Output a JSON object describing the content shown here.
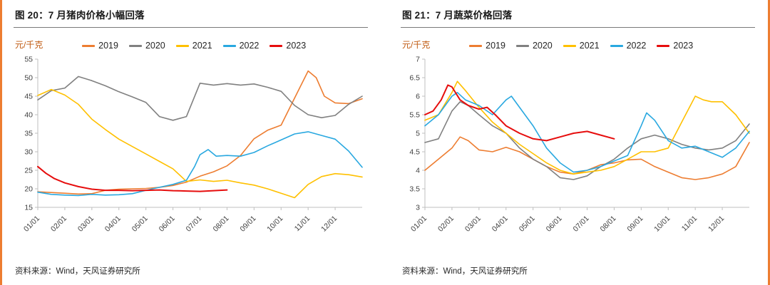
{
  "page": {
    "background": "#ffffff",
    "accent_border_color": "#ED7D31",
    "unit_label_color": "#C05A11",
    "title_color": "#1A1A1A",
    "axis_line_color": "#BFBFBF",
    "tick_label_color": "#404040"
  },
  "chart_data": [
    {
      "type": "line",
      "title": "图 20：7 月猪肉价格小幅回落",
      "ylabel": "元/千克",
      "source": "资料来源：Wind，天风证券研究所",
      "x_tick_labels": [
        "01/01",
        "02/01",
        "03/01",
        "04/01",
        "05/01",
        "06/01",
        "07/01",
        "08/01",
        "09/01",
        "10/01",
        "11/01",
        "12/01"
      ],
      "x_range": [
        0,
        12
      ],
      "ylim": [
        15,
        55
      ],
      "y_tick_step": 5,
      "grid": false,
      "legend_position": "top",
      "series": [
        {
          "name": "2019",
          "color": "#ED7D31",
          "x": [
            0,
            0.5,
            1,
            1.5,
            2,
            2.5,
            3,
            3.5,
            4,
            4.5,
            5,
            5.5,
            6,
            6.5,
            7,
            7.5,
            8,
            8.5,
            9,
            9.5,
            10,
            10.3,
            10.6,
            11,
            11.5,
            12
          ],
          "values": [
            19.2,
            19.0,
            18.8,
            18.6,
            18.7,
            19.6,
            19.9,
            20.0,
            20.1,
            20.4,
            20.9,
            21.8,
            23.4,
            24.6,
            26.2,
            29.0,
            33.5,
            35.8,
            37.2,
            44.5,
            51.8,
            50.0,
            45.0,
            43.2,
            43.0,
            44.3
          ]
        },
        {
          "name": "2020",
          "color": "#808080",
          "x": [
            0,
            0.5,
            1,
            1.5,
            2,
            2.5,
            3,
            3.5,
            4,
            4.5,
            5,
            5.5,
            6,
            6.5,
            7,
            7.5,
            8,
            8.5,
            9,
            9.5,
            10,
            10.5,
            11,
            11.5,
            12
          ],
          "values": [
            44.0,
            46.5,
            47.2,
            50.3,
            49.2,
            47.8,
            46.2,
            44.8,
            43.3,
            39.5,
            38.5,
            39.5,
            48.5,
            48.0,
            48.4,
            48.0,
            48.3,
            47.4,
            46.3,
            42.5,
            40.0,
            39.2,
            39.8,
            42.8,
            45.0
          ]
        },
        {
          "name": "2021",
          "color": "#FFC000",
          "x": [
            0,
            0.5,
            1,
            1.5,
            2,
            2.5,
            3,
            3.5,
            4,
            4.5,
            5,
            5.5,
            6,
            6.5,
            7,
            7.5,
            8,
            8.5,
            9,
            9.5,
            10,
            10.5,
            11,
            11.5,
            12
          ],
          "values": [
            45.2,
            46.8,
            45.3,
            42.8,
            38.8,
            36.0,
            33.4,
            31.4,
            29.4,
            27.4,
            25.4,
            22.0,
            22.4,
            22.0,
            22.3,
            21.6,
            21.0,
            20.0,
            18.8,
            17.6,
            21.2,
            23.3,
            24.1,
            23.8,
            23.2
          ]
        },
        {
          "name": "2022",
          "color": "#29A8E0",
          "x": [
            0,
            0.5,
            1,
            1.5,
            2,
            2.5,
            3,
            3.5,
            4,
            4.5,
            5,
            5.5,
            5.8,
            6,
            6.3,
            6.6,
            7,
            7.5,
            8,
            8.5,
            9,
            9.5,
            10,
            10.5,
            11,
            11.5,
            12
          ],
          "values": [
            19.1,
            18.5,
            18.3,
            18.2,
            18.5,
            18.3,
            18.4,
            18.7,
            19.6,
            20.4,
            21.2,
            22.3,
            26.0,
            29.2,
            30.6,
            28.8,
            29.0,
            28.8,
            29.8,
            31.6,
            33.2,
            34.8,
            35.4,
            34.4,
            33.4,
            30.2,
            25.8
          ]
        },
        {
          "name": "2023",
          "color": "#E60D0D",
          "width": 2,
          "x": [
            0,
            0.3,
            0.6,
            1,
            1.5,
            2,
            2.5,
            3,
            3.5,
            4,
            4.5,
            5,
            5.5,
            6,
            6.5,
            7
          ],
          "values": [
            26.0,
            24.2,
            22.8,
            21.6,
            20.6,
            19.9,
            19.6,
            19.6,
            19.5,
            19.6,
            19.7,
            19.5,
            19.4,
            19.3,
            19.5,
            19.7
          ]
        }
      ]
    },
    {
      "type": "line",
      "title": "图 21：7 月蔬菜价格回落",
      "ylabel": "元/千克",
      "source": "资料来源：Wind，天风证券研究所",
      "x_tick_labels": [
        "01/01",
        "02/01",
        "03/01",
        "04/01",
        "05/01",
        "06/01",
        "07/01",
        "08/01",
        "09/01",
        "10/01",
        "11/01",
        "12/01"
      ],
      "x_range": [
        0,
        12
      ],
      "ylim": [
        3,
        7
      ],
      "y_tick_step": 0.5,
      "grid": false,
      "legend_position": "top",
      "series": [
        {
          "name": "2019",
          "color": "#ED7D31",
          "x": [
            0,
            0.5,
            1,
            1.3,
            1.6,
            2,
            2.5,
            3,
            3.5,
            4,
            4.5,
            5,
            5.5,
            6,
            6.5,
            7,
            7.5,
            8,
            8.5,
            9,
            9.5,
            10,
            10.5,
            11,
            11.5,
            12
          ],
          "values": [
            4.0,
            4.3,
            4.6,
            4.9,
            4.8,
            4.55,
            4.5,
            4.62,
            4.5,
            4.3,
            4.1,
            3.95,
            3.9,
            4.0,
            4.15,
            4.2,
            4.28,
            4.3,
            4.1,
            3.95,
            3.8,
            3.75,
            3.8,
            3.9,
            4.1,
            4.75
          ]
        },
        {
          "name": "2020",
          "color": "#808080",
          "x": [
            0,
            0.5,
            1,
            1.3,
            1.6,
            2,
            2.5,
            3,
            3.5,
            4,
            4.5,
            5,
            5.5,
            6,
            6.5,
            7,
            7.5,
            8,
            8.5,
            9,
            9.5,
            10,
            10.5,
            11,
            11.5,
            12
          ],
          "values": [
            4.75,
            4.85,
            5.6,
            5.85,
            5.75,
            5.5,
            5.2,
            5.0,
            4.6,
            4.3,
            4.1,
            3.8,
            3.75,
            3.85,
            4.1,
            4.3,
            4.6,
            4.85,
            4.95,
            4.85,
            4.7,
            4.6,
            4.55,
            4.6,
            4.8,
            5.25
          ]
        },
        {
          "name": "2021",
          "color": "#FFC000",
          "x": [
            0,
            0.5,
            1,
            1.2,
            1.5,
            2,
            2.5,
            3,
            3.5,
            4,
            4.5,
            5,
            5.5,
            6,
            6.5,
            7,
            7.5,
            8,
            8.5,
            9,
            9.5,
            10,
            10.3,
            10.6,
            11,
            11.5,
            12
          ],
          "values": [
            5.35,
            5.5,
            6.1,
            6.4,
            6.15,
            5.7,
            5.3,
            5.0,
            4.7,
            4.45,
            4.2,
            4.0,
            3.9,
            3.95,
            4.0,
            4.1,
            4.3,
            4.5,
            4.5,
            4.6,
            5.3,
            6.0,
            5.9,
            5.85,
            5.85,
            5.5,
            5.0
          ]
        },
        {
          "name": "2022",
          "color": "#29A8E0",
          "x": [
            0,
            0.5,
            1,
            1.2,
            1.5,
            2,
            2.5,
            3,
            3.2,
            3.5,
            4,
            4.5,
            5,
            5.5,
            6,
            6.5,
            7,
            7.5,
            8,
            8.2,
            8.5,
            9,
            9.5,
            10,
            10.5,
            11,
            11.5,
            12
          ],
          "values": [
            5.2,
            5.5,
            6.0,
            6.1,
            5.9,
            5.75,
            5.5,
            5.9,
            6.0,
            5.7,
            5.2,
            4.6,
            4.2,
            3.95,
            4.0,
            4.1,
            4.25,
            4.4,
            5.2,
            5.55,
            5.35,
            4.8,
            4.6,
            4.65,
            4.5,
            4.35,
            4.6,
            5.05
          ]
        },
        {
          "name": "2023",
          "color": "#E60D0D",
          "width": 2,
          "x": [
            0,
            0.3,
            0.6,
            0.85,
            1,
            1.3,
            1.6,
            2,
            2.3,
            2.6,
            3,
            3.5,
            4,
            4.5,
            5,
            5.5,
            6,
            6.5,
            7
          ],
          "values": [
            5.5,
            5.6,
            5.9,
            6.3,
            6.25,
            5.9,
            5.75,
            5.65,
            5.7,
            5.5,
            5.2,
            5.0,
            4.85,
            4.8,
            4.9,
            5.0,
            5.05,
            4.95,
            4.85
          ]
        }
      ]
    }
  ]
}
